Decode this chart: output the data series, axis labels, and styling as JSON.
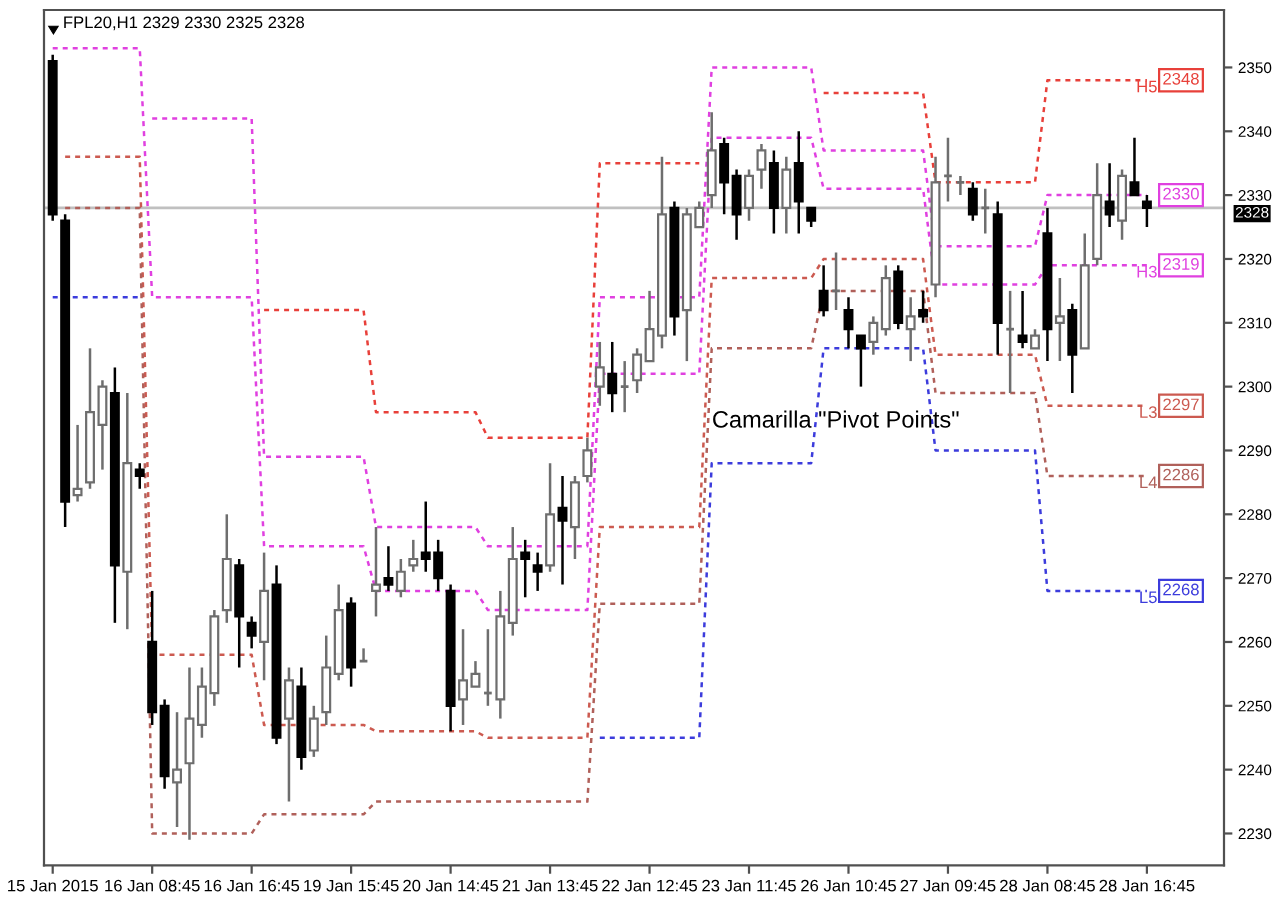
{
  "chart_data": {
    "type": "candlestick",
    "title": "FPL20,H1 2329 2330 2325 2328",
    "categories": [
      "15 Jan 2015",
      null,
      null,
      null,
      null,
      null,
      null,
      null,
      "16 Jan 08:45",
      null,
      null,
      null,
      null,
      null,
      null,
      null,
      "16 Jan 16:45",
      null,
      null,
      null,
      null,
      null,
      null,
      null,
      "19 Jan 15:45",
      null,
      null,
      null,
      null,
      null,
      null,
      null,
      "20 Jan 14:45",
      null,
      null,
      null,
      null,
      null,
      null,
      null,
      "21 Jan 13:45",
      null,
      null,
      null,
      null,
      null,
      null,
      null,
      "22 Jan 12:45",
      null,
      null,
      null,
      null,
      null,
      null,
      null,
      "23 Jan 11:45",
      null,
      null,
      null,
      null,
      null,
      null,
      null,
      "26 Jan 10:45",
      null,
      null,
      null,
      null,
      null,
      null,
      null,
      "27 Jan 09:45",
      null,
      null,
      null,
      null,
      null,
      null,
      null,
      "28 Jan 08:45",
      null,
      null,
      null,
      null,
      null,
      null,
      null,
      "28 Jan 16:45"
    ],
    "ohlc": [
      [
        2351,
        2352,
        2326,
        2327
      ],
      [
        2326,
        2327,
        2278,
        2282
      ],
      [
        2283,
        2294,
        2282,
        2284
      ],
      [
        2285,
        2306,
        2284,
        2296
      ],
      [
        2294,
        2301,
        2287,
        2300
      ],
      [
        2299,
        2303,
        2263,
        2272
      ],
      [
        2271,
        2299,
        2262,
        2288
      ],
      [
        2287,
        2288,
        2284,
        2286
      ],
      [
        2260,
        2268,
        2247,
        2249
      ],
      [
        2250,
        2251,
        2237,
        2239
      ],
      [
        2238,
        2249,
        2231,
        2240
      ],
      [
        2241,
        2256,
        2229,
        2248
      ],
      [
        2247,
        2256,
        2245,
        2253
      ],
      [
        2252,
        2265,
        2250,
        2264
      ],
      [
        2265,
        2280,
        2263,
        2273
      ],
      [
        2272,
        2273,
        2256,
        2264
      ],
      [
        2263,
        2264,
        2259,
        2261
      ],
      [
        2260,
        2274,
        2254,
        2268
      ],
      [
        2269,
        2272,
        2244,
        2245
      ],
      [
        2248,
        2256,
        2235,
        2254
      ],
      [
        2253,
        2256,
        2240,
        2242
      ],
      [
        2243,
        2250,
        2242,
        2248
      ],
      [
        2249,
        2261,
        2247,
        2256
      ],
      [
        2255,
        2269,
        2254,
        2265
      ],
      [
        2266,
        2267,
        2253,
        2256
      ],
      [
        2257,
        2259,
        2257,
        2257
      ],
      [
        2268,
        2278,
        2264,
        2269
      ],
      [
        2270,
        2275,
        2268,
        2269
      ],
      [
        2268,
        2273,
        2267,
        2271
      ],
      [
        2272,
        2276,
        2271,
        2273
      ],
      [
        2274,
        2282,
        2271,
        2273
      ],
      [
        2274,
        2276,
        2268,
        2270
      ],
      [
        2268,
        2269,
        2246,
        2250
      ],
      [
        2251,
        2262,
        2247,
        2254
      ],
      [
        2253,
        2257,
        2253,
        2255
      ],
      [
        2252,
        2262,
        2250,
        2252
      ],
      [
        2251,
        2268,
        2248,
        2264
      ],
      [
        2263,
        2278,
        2261,
        2273
      ],
      [
        2274,
        2276,
        2267,
        2273
      ],
      [
        2272,
        2274,
        2268,
        2271
      ],
      [
        2272,
        2288,
        2271,
        2280
      ],
      [
        2281,
        2286,
        2269,
        2279
      ],
      [
        2278,
        2286,
        2273,
        2285
      ],
      [
        2286,
        2292,
        2285,
        2290
      ],
      [
        2300,
        2307,
        2297,
        2303
      ],
      [
        2302,
        2307,
        2296,
        2299
      ],
      [
        2300,
        2304,
        2296,
        2300
      ],
      [
        2301,
        2306,
        2299,
        2305
      ],
      [
        2304,
        2315,
        2304,
        2309
      ],
      [
        2308,
        2336,
        2306,
        2327
      ],
      [
        2328,
        2329,
        2308,
        2311
      ],
      [
        2312,
        2328,
        2304,
        2327
      ],
      [
        2325,
        2329,
        2325,
        2328
      ],
      [
        2330,
        2343,
        2328,
        2337
      ],
      [
        2338,
        2339,
        2327,
        2332
      ],
      [
        2333,
        2334,
        2323,
        2327
      ],
      [
        2328,
        2334,
        2326,
        2333
      ],
      [
        2334,
        2338,
        2331,
        2337
      ],
      [
        2335,
        2337,
        2324,
        2328
      ],
      [
        2328,
        2336,
        2324,
        2334
      ],
      [
        2335,
        2340,
        2324,
        2329
      ],
      [
        2328,
        2328,
        2325,
        2326
      ],
      [
        2315,
        2319,
        2311,
        2312
      ],
      [
        2315,
        2321,
        2312,
        2315
      ],
      [
        2312,
        2314,
        2306,
        2309
      ],
      [
        2308,
        2308,
        2300,
        2306
      ],
      [
        2307,
        2311,
        2305,
        2310
      ],
      [
        2309,
        2319,
        2308,
        2317
      ],
      [
        2318,
        2319,
        2309,
        2310
      ],
      [
        2309,
        2314,
        2304,
        2311
      ],
      [
        2312,
        2315,
        2310,
        2311
      ],
      [
        2316,
        2336,
        2314,
        2332
      ],
      [
        2333,
        2339,
        2329,
        2333
      ],
      [
        2332,
        2333,
        2330,
        2332
      ],
      [
        2331,
        2332,
        2326,
        2327
      ],
      [
        2328,
        2331,
        2324,
        2328
      ],
      [
        2327,
        2329,
        2305,
        2310
      ],
      [
        2309,
        2315,
        2299,
        2309
      ],
      [
        2308,
        2315,
        2306,
        2307
      ],
      [
        2306,
        2309,
        2306,
        2308
      ],
      [
        2324,
        2328,
        2304,
        2309
      ],
      [
        2310,
        2317,
        2304,
        2311
      ],
      [
        2312,
        2313,
        2299,
        2305
      ],
      [
        2306,
        2324,
        2306,
        2319
      ],
      [
        2320,
        2335,
        2319,
        2330
      ],
      [
        2329,
        2335,
        2325,
        2327
      ],
      [
        2326,
        2334,
        2323,
        2333
      ],
      [
        2332,
        2339,
        2330,
        2330
      ],
      [
        2329,
        2330,
        2325,
        2328
      ]
    ],
    "series": [
      {
        "name": "H5",
        "type": "line",
        "color": "#e8403a",
        "values": [
          null,
          null,
          null,
          null,
          null,
          null,
          null,
          null,
          null,
          null,
          null,
          null,
          null,
          null,
          null,
          null,
          null,
          2312,
          2312,
          2312,
          2312,
          2312,
          2312,
          2312,
          2312,
          2312,
          2296,
          2296,
          2296,
          2296,
          2296,
          2296,
          2296,
          2296,
          2296,
          2292,
          2292,
          2292,
          2292,
          2292,
          2292,
          2292,
          2292,
          2292,
          2335,
          2335,
          2335,
          2335,
          2335,
          2335,
          2335,
          2335,
          2335,
          null,
          null,
          null,
          null,
          null,
          null,
          null,
          null,
          null,
          2346,
          2346,
          2346,
          2346,
          2346,
          2346,
          2346,
          2346,
          2346,
          2332,
          2332,
          2332,
          2332,
          2332,
          2332,
          2332,
          2332,
          2332,
          2348,
          2348,
          2348,
          2348,
          2348,
          2348,
          2348,
          2348,
          2348
        ],
        "value_labels": [
          null,
          null,
          null,
          null,
          null,
          null,
          null,
          null,
          null,
          null,
          null,
          null,
          null,
          null,
          null,
          null,
          null,
          null,
          null,
          null,
          null,
          null,
          null,
          null,
          null,
          null,
          null,
          null,
          null,
          null,
          null,
          null,
          null,
          null,
          null,
          null,
          null,
          null,
          null,
          null,
          null,
          null,
          null,
          null,
          null,
          null,
          null,
          null,
          null,
          null,
          null,
          null,
          null,
          null,
          null,
          null,
          null,
          null,
          null,
          null,
          null,
          null,
          null,
          null,
          null,
          null,
          null,
          null,
          null,
          null,
          null,
          null,
          null,
          null,
          null,
          null,
          null,
          null,
          null,
          null,
          null,
          null,
          null,
          null,
          null,
          null,
          null,
          null,
          "2348"
        ]
      },
      {
        "type": "line",
        "color": "#e040e0",
        "values": [
          null,
          null,
          null,
          null,
          null,
          null,
          null,
          null,
          2342,
          2342,
          2342,
          2342,
          2342,
          2342,
          2342,
          2342,
          2342,
          2289,
          2289,
          2289,
          2289,
          2289,
          2289,
          2289,
          2289,
          2289,
          2278,
          2278,
          2278,
          2278,
          2278,
          2278,
          2278,
          2278,
          2278,
          2275,
          2275,
          2275,
          2275,
          2275,
          2275,
          2275,
          2275,
          2275,
          2314,
          2314,
          2314,
          2314,
          2314,
          2314,
          2314,
          2314,
          2314,
          2350,
          2350,
          2350,
          2350,
          2350,
          2350,
          2350,
          2350,
          2350,
          2337,
          2337,
          2337,
          2337,
          2337,
          2337,
          2337,
          2337,
          2337,
          2322,
          2322,
          2322,
          2322,
          2322,
          2322,
          2322,
          2322,
          2322,
          2330,
          2330,
          2330,
          2330,
          2330,
          2330,
          2330,
          2330,
          2330
        ],
        "value_labels": [
          null,
          null,
          null,
          null,
          null,
          null,
          null,
          null,
          null,
          null,
          null,
          null,
          null,
          null,
          null,
          null,
          null,
          null,
          null,
          null,
          null,
          null,
          null,
          null,
          null,
          null,
          null,
          null,
          null,
          null,
          null,
          null,
          null,
          null,
          null,
          null,
          null,
          null,
          null,
          null,
          null,
          null,
          null,
          null,
          null,
          null,
          null,
          null,
          null,
          null,
          null,
          null,
          null,
          null,
          null,
          null,
          null,
          null,
          null,
          null,
          null,
          null,
          null,
          null,
          null,
          null,
          null,
          null,
          null,
          null,
          null,
          null,
          null,
          null,
          null,
          null,
          null,
          null,
          null,
          null,
          null,
          null,
          null,
          null,
          null,
          null,
          null,
          null,
          "2330"
        ]
      },
      {
        "name": "H3",
        "type": "line",
        "color": "#e040e0",
        "values": [
          2353,
          2353,
          2353,
          2353,
          2353,
          2353,
          2353,
          2353,
          2314,
          2314,
          2314,
          2314,
          2314,
          2314,
          2314,
          2314,
          2314,
          2275,
          2275,
          2275,
          2275,
          2275,
          2275,
          2275,
          2275,
          2275,
          2268,
          2268,
          2268,
          2268,
          2268,
          2268,
          2268,
          2268,
          2268,
          2265,
          2265,
          2265,
          2265,
          2265,
          2265,
          2265,
          2265,
          2265,
          2302,
          2302,
          2302,
          2302,
          2302,
          2302,
          2302,
          2302,
          2302,
          2339,
          2339,
          2339,
          2339,
          2339,
          2339,
          2339,
          2339,
          2339,
          2331,
          2331,
          2331,
          2331,
          2331,
          2331,
          2331,
          2331,
          2331,
          2316,
          2316,
          2316,
          2316,
          2316,
          2316,
          2316,
          2316,
          2316,
          2319,
          2319,
          2319,
          2319,
          2319,
          2319,
          2319,
          2319,
          2319
        ],
        "value_labels": [
          null,
          null,
          null,
          null,
          null,
          null,
          null,
          null,
          null,
          null,
          null,
          null,
          null,
          null,
          null,
          null,
          null,
          null,
          null,
          null,
          null,
          null,
          null,
          null,
          null,
          null,
          null,
          null,
          null,
          null,
          null,
          null,
          null,
          null,
          null,
          null,
          null,
          null,
          null,
          null,
          null,
          null,
          null,
          null,
          null,
          null,
          null,
          null,
          null,
          null,
          null,
          null,
          null,
          null,
          null,
          null,
          null,
          null,
          null,
          null,
          null,
          null,
          null,
          null,
          null,
          null,
          null,
          null,
          null,
          null,
          null,
          null,
          null,
          null,
          null,
          null,
          null,
          null,
          null,
          null,
          null,
          null,
          null,
          null,
          null,
          null,
          null,
          null,
          "2319"
        ]
      },
      {
        "name": "L3",
        "type": "line",
        "color": "#cc5a50",
        "values": [
          null,
          2336,
          2336,
          2336,
          2336,
          2336,
          2336,
          2336,
          2258,
          2258,
          2258,
          2258,
          2258,
          2258,
          2258,
          2258,
          2258,
          2247,
          2247,
          2247,
          2247,
          2247,
          2247,
          2247,
          2247,
          2247,
          2246,
          2246,
          2246,
          2246,
          2246,
          2246,
          2246,
          2246,
          2246,
          2245,
          2245,
          2245,
          2245,
          2245,
          2245,
          2245,
          2245,
          2245,
          2278,
          2278,
          2278,
          2278,
          2278,
          2278,
          2278,
          2278,
          2278,
          2317,
          2317,
          2317,
          2317,
          2317,
          2317,
          2317,
          2317,
          2317,
          2320,
          2320,
          2320,
          2320,
          2320,
          2320,
          2320,
          2320,
          2320,
          2305,
          2305,
          2305,
          2305,
          2305,
          2305,
          2305,
          2305,
          2305,
          2297,
          2297,
          2297,
          2297,
          2297,
          2297,
          2297,
          2297,
          2297
        ],
        "value_labels": [
          null,
          null,
          null,
          null,
          null,
          null,
          null,
          null,
          null,
          null,
          null,
          null,
          null,
          null,
          null,
          null,
          null,
          null,
          null,
          null,
          null,
          null,
          null,
          null,
          null,
          null,
          null,
          null,
          null,
          null,
          null,
          null,
          null,
          null,
          null,
          null,
          null,
          null,
          null,
          null,
          null,
          null,
          null,
          null,
          null,
          null,
          null,
          null,
          null,
          null,
          null,
          null,
          null,
          null,
          null,
          null,
          null,
          null,
          null,
          null,
          null,
          null,
          null,
          null,
          null,
          null,
          null,
          null,
          null,
          null,
          null,
          null,
          null,
          null,
          null,
          null,
          null,
          null,
          null,
          null,
          null,
          null,
          null,
          null,
          null,
          null,
          null,
          null,
          "2297"
        ]
      },
      {
        "name": "L4",
        "type": "line",
        "color": "#b0605a",
        "values": [
          null,
          2328,
          2328,
          2328,
          2328,
          2328,
          2328,
          2328,
          2230,
          2230,
          2230,
          2230,
          2230,
          2230,
          2230,
          2230,
          2230,
          2233,
          2233,
          2233,
          2233,
          2233,
          2233,
          2233,
          2233,
          2233,
          2235,
          2235,
          2235,
          2235,
          2235,
          2235,
          2235,
          2235,
          2235,
          2235,
          2235,
          2235,
          2235,
          2235,
          2235,
          2235,
          2235,
          2235,
          2266,
          2266,
          2266,
          2266,
          2266,
          2266,
          2266,
          2266,
          2266,
          2306,
          2306,
          2306,
          2306,
          2306,
          2306,
          2306,
          2306,
          2306,
          2315,
          2315,
          2315,
          2315,
          2315,
          2315,
          2315,
          2315,
          2315,
          2299,
          2299,
          2299,
          2299,
          2299,
          2299,
          2299,
          2299,
          2299,
          2286,
          2286,
          2286,
          2286,
          2286,
          2286,
          2286,
          2286,
          2286
        ],
        "value_labels": [
          null,
          null,
          null,
          null,
          null,
          null,
          null,
          null,
          null,
          null,
          null,
          null,
          null,
          null,
          null,
          null,
          null,
          null,
          null,
          null,
          null,
          null,
          null,
          null,
          null,
          null,
          null,
          null,
          null,
          null,
          null,
          null,
          null,
          null,
          null,
          null,
          null,
          null,
          null,
          null,
          null,
          null,
          null,
          null,
          null,
          null,
          null,
          null,
          null,
          null,
          null,
          null,
          null,
          null,
          null,
          null,
          null,
          null,
          null,
          null,
          null,
          null,
          null,
          null,
          null,
          null,
          null,
          null,
          null,
          null,
          null,
          null,
          null,
          null,
          null,
          null,
          null,
          null,
          null,
          null,
          null,
          null,
          null,
          null,
          null,
          null,
          null,
          null,
          "2286"
        ]
      },
      {
        "name": "L5",
        "type": "line",
        "color": "#3c3cdc",
        "values": [
          2314,
          2314,
          2314,
          2314,
          2314,
          2314,
          2314,
          2314,
          null,
          null,
          null,
          null,
          null,
          null,
          null,
          null,
          null,
          null,
          null,
          null,
          null,
          null,
          null,
          null,
          null,
          null,
          null,
          null,
          null,
          null,
          null,
          null,
          null,
          null,
          null,
          null,
          null,
          null,
          null,
          null,
          null,
          null,
          null,
          null,
          2245,
          2245,
          2245,
          2245,
          2245,
          2245,
          2245,
          2245,
          2245,
          2288,
          2288,
          2288,
          2288,
          2288,
          2288,
          2288,
          2288,
          2288,
          2306,
          2306,
          2306,
          2306,
          2306,
          2306,
          2306,
          2306,
          2306,
          2290,
          2290,
          2290,
          2290,
          2290,
          2290,
          2290,
          2290,
          2290,
          2268,
          2268,
          2268,
          2268,
          2268,
          2268,
          2268,
          2268,
          2268
        ],
        "value_labels": [
          null,
          null,
          null,
          null,
          null,
          null,
          null,
          null,
          null,
          null,
          null,
          null,
          null,
          null,
          null,
          null,
          null,
          null,
          null,
          null,
          null,
          null,
          null,
          null,
          null,
          null,
          null,
          null,
          null,
          null,
          null,
          null,
          null,
          null,
          null,
          null,
          null,
          null,
          null,
          null,
          null,
          null,
          null,
          null,
          null,
          null,
          null,
          null,
          null,
          null,
          null,
          null,
          null,
          null,
          null,
          null,
          null,
          null,
          null,
          null,
          null,
          null,
          null,
          null,
          null,
          null,
          null,
          null,
          null,
          null,
          null,
          null,
          null,
          null,
          null,
          null,
          null,
          null,
          null,
          null,
          null,
          null,
          null,
          null,
          null,
          null,
          null,
          null,
          "2268"
        ]
      }
    ],
    "line_style": "dotted",
    "legend": "right",
    "ylim": [
      2225,
      2359
    ],
    "yticks": [
      2230,
      2240,
      2250,
      2260,
      2270,
      2280,
      2290,
      2300,
      2310,
      2320,
      2330,
      2340,
      2350
    ],
    "ref_lines": [
      {
        "axis": "y",
        "value": 2328,
        "label": "2328",
        "color": "#c0c0c0"
      }
    ],
    "annotations": [
      "Camarilla \"Pivot Points\""
    ]
  }
}
